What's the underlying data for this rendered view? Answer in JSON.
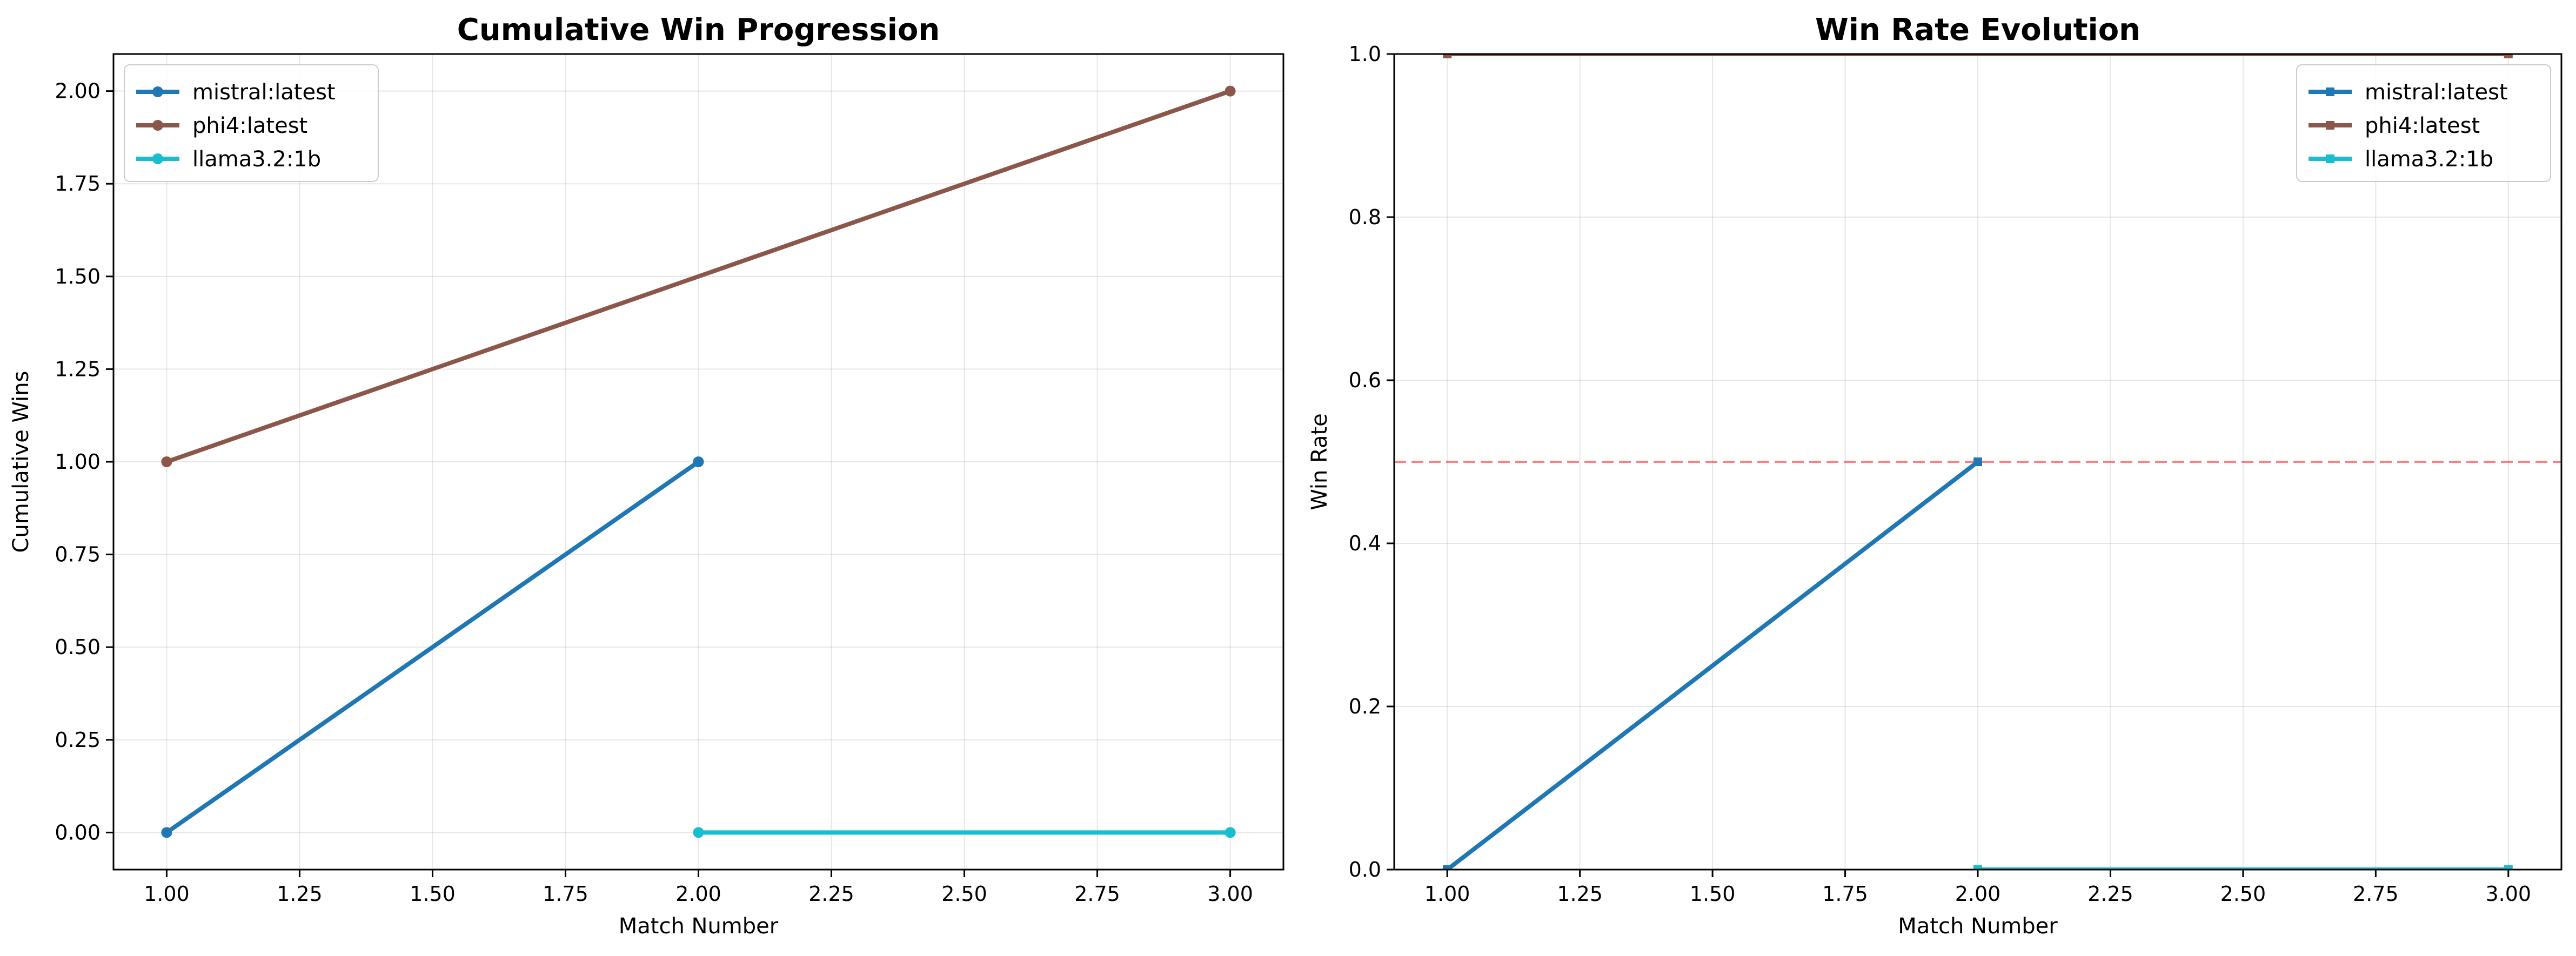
{
  "chart_data": [
    {
      "type": "line",
      "title": "Cumulative Win Progression",
      "xlabel": "Match Number",
      "ylabel": "Cumulative Wins",
      "xlim": [
        0.9,
        3.1
      ],
      "ylim": [
        -0.1,
        2.1
      ],
      "xticks": [
        "1.00",
        "1.25",
        "1.50",
        "1.75",
        "2.00",
        "2.25",
        "2.50",
        "2.75",
        "3.00"
      ],
      "yticks": [
        "0.00",
        "0.25",
        "0.50",
        "0.75",
        "1.00",
        "1.25",
        "1.50",
        "1.75",
        "2.00"
      ],
      "grid": true,
      "legend_position": "top-left",
      "marker": "circle",
      "series": [
        {
          "name": "mistral:latest",
          "color": "#1f77b4",
          "x": [
            1,
            2
          ],
          "y": [
            0,
            1
          ]
        },
        {
          "name": "phi4:latest",
          "color": "#8c564b",
          "x": [
            1,
            3
          ],
          "y": [
            1,
            2
          ]
        },
        {
          "name": "llama3.2:1b",
          "color": "#17becf",
          "x": [
            2,
            3
          ],
          "y": [
            0,
            0
          ]
        }
      ]
    },
    {
      "type": "line",
      "title": "Win Rate Evolution",
      "xlabel": "Match Number",
      "ylabel": "Win Rate",
      "xlim": [
        0.9,
        3.1
      ],
      "ylim": [
        0,
        1
      ],
      "xticks": [
        "1.00",
        "1.25",
        "1.50",
        "1.75",
        "2.00",
        "2.25",
        "2.50",
        "2.75",
        "3.00"
      ],
      "yticks": [
        "0.0",
        "0.2",
        "0.4",
        "0.6",
        "0.8",
        "1.0"
      ],
      "grid": true,
      "legend_position": "top-right",
      "marker": "square",
      "reference_line": {
        "y": 0.5,
        "color": "#ff0000",
        "style": "dashed"
      },
      "series": [
        {
          "name": "mistral:latest",
          "color": "#1f77b4",
          "x": [
            1,
            2
          ],
          "y": [
            0,
            0.5
          ]
        },
        {
          "name": "phi4:latest",
          "color": "#8c564b",
          "x": [
            1,
            3
          ],
          "y": [
            1,
            1
          ]
        },
        {
          "name": "llama3.2:1b",
          "color": "#17becf",
          "x": [
            2,
            3
          ],
          "y": [
            0,
            0
          ]
        }
      ]
    }
  ]
}
